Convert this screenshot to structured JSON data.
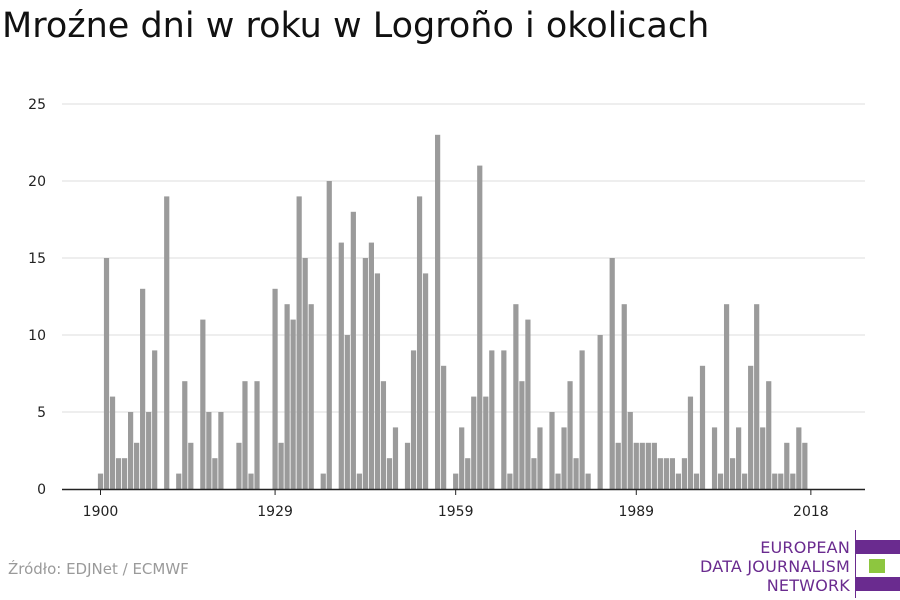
{
  "title": "Mroźne dni w roku w Logroño i okolicach",
  "source": "Źródło: EDJNet / ECMWF",
  "logo": {
    "lines": [
      "EUROPEAN",
      "DATA JOURNALISM",
      "NETWORK"
    ],
    "purple": "#6a2b8f",
    "green": "#8dc63f"
  },
  "chart_data": {
    "type": "bar",
    "title": "Mroźne dni w roku w Logroño i okolicach",
    "xlabel": "",
    "ylabel": "",
    "ylim": [
      0,
      25
    ],
    "yticks": [
      0,
      5,
      10,
      15,
      20,
      25
    ],
    "xticks": [
      1900,
      1929,
      1959,
      1989,
      2018
    ],
    "grid": true,
    "bar_color": "#9b9b9b",
    "x": [
      1900,
      1901,
      1902,
      1903,
      1904,
      1905,
      1906,
      1907,
      1908,
      1909,
      1910,
      1911,
      1912,
      1913,
      1914,
      1915,
      1916,
      1917,
      1918,
      1919,
      1920,
      1921,
      1922,
      1923,
      1924,
      1925,
      1926,
      1927,
      1928,
      1929,
      1930,
      1931,
      1932,
      1933,
      1934,
      1935,
      1936,
      1937,
      1938,
      1939,
      1940,
      1941,
      1942,
      1943,
      1944,
      1945,
      1946,
      1947,
      1948,
      1949,
      1950,
      1951,
      1952,
      1953,
      1954,
      1955,
      1956,
      1957,
      1958,
      1959,
      1960,
      1961,
      1962,
      1963,
      1964,
      1965,
      1966,
      1967,
      1968,
      1969,
      1970,
      1971,
      1972,
      1973,
      1974,
      1975,
      1976,
      1977,
      1978,
      1979,
      1980,
      1981,
      1982,
      1983,
      1984,
      1985,
      1986,
      1987,
      1988,
      1989,
      1990,
      1991,
      1992,
      1993,
      1994,
      1995,
      1996,
      1997,
      1998,
      1999,
      2000,
      2001,
      2002,
      2003,
      2004,
      2005,
      2006,
      2007,
      2008,
      2009,
      2010,
      2011,
      2012,
      2013,
      2014,
      2015,
      2016,
      2017,
      2018,
      2019
    ],
    "values": [
      1,
      15,
      6,
      2,
      2,
      5,
      3,
      13,
      5,
      9,
      0,
      19,
      0,
      1,
      7,
      3,
      0,
      11,
      5,
      2,
      5,
      0,
      0,
      3,
      7,
      1,
      7,
      0,
      0,
      13,
      3,
      12,
      11,
      19,
      15,
      12,
      0,
      1,
      20,
      0,
      16,
      10,
      18,
      1,
      15,
      16,
      14,
      7,
      2,
      4,
      0,
      3,
      9,
      19,
      14,
      0,
      23,
      8,
      0,
      1,
      4,
      2,
      6,
      21,
      6,
      9,
      0,
      9,
      1,
      12,
      7,
      11,
      2,
      4,
      0,
      5,
      1,
      4,
      7,
      2,
      9,
      1,
      0,
      10,
      0,
      15,
      3,
      12,
      5,
      3,
      3,
      3,
      3,
      2,
      2,
      2,
      1,
      2,
      6,
      1,
      8,
      0,
      4,
      1,
      12,
      2,
      4,
      1,
      8,
      12,
      4,
      7,
      1,
      1,
      3,
      1,
      4,
      3,
      0,
      0
    ]
  }
}
